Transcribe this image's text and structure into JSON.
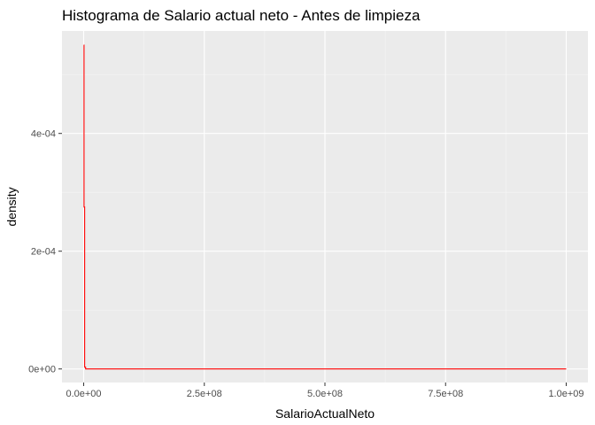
{
  "chart_data": {
    "type": "histogram",
    "title": "Histograma de Salario actual neto - Antes de limpieza",
    "xlabel": "SalarioActualNeto",
    "ylabel": "density",
    "xlim": [
      -45000000,
      1045000000
    ],
    "ylim": [
      -2.3e-05,
      0.000574
    ],
    "x_ticks": [
      {
        "value": 0,
        "label": "0.0e+00"
      },
      {
        "value": 250000000,
        "label": "2.5e+08"
      },
      {
        "value": 500000000,
        "label": "5.0e+08"
      },
      {
        "value": 750000000,
        "label": "7.5e+08"
      },
      {
        "value": 1000000000,
        "label": "1.0e+09"
      }
    ],
    "y_ticks": [
      {
        "value": 0,
        "label": "0e+00"
      },
      {
        "value": 0.0002,
        "label": "2e-04"
      },
      {
        "value": 0.0004,
        "label": "4e-04"
      }
    ],
    "grid": true,
    "legend": "none",
    "series": [
      {
        "color": "#ff0000",
        "outline": [
          {
            "x": 0,
            "y": 0.00055
          },
          {
            "x": 700000,
            "y": 0.00055
          },
          {
            "x": 700000,
            "y": 0.000275
          },
          {
            "x": 2000000,
            "y": 0.000275
          },
          {
            "x": 2000000,
            "y": 3e-06
          },
          {
            "x": 4000000,
            "y": 3e-06
          },
          {
            "x": 4000000,
            "y": 0
          },
          {
            "x": 1000000000,
            "y": 0
          }
        ]
      }
    ],
    "colors": {
      "panel_background": "#ebebeb",
      "grid_major": "#ffffff",
      "grid_minor": "#f5f5f5",
      "tick": "#333333"
    }
  }
}
